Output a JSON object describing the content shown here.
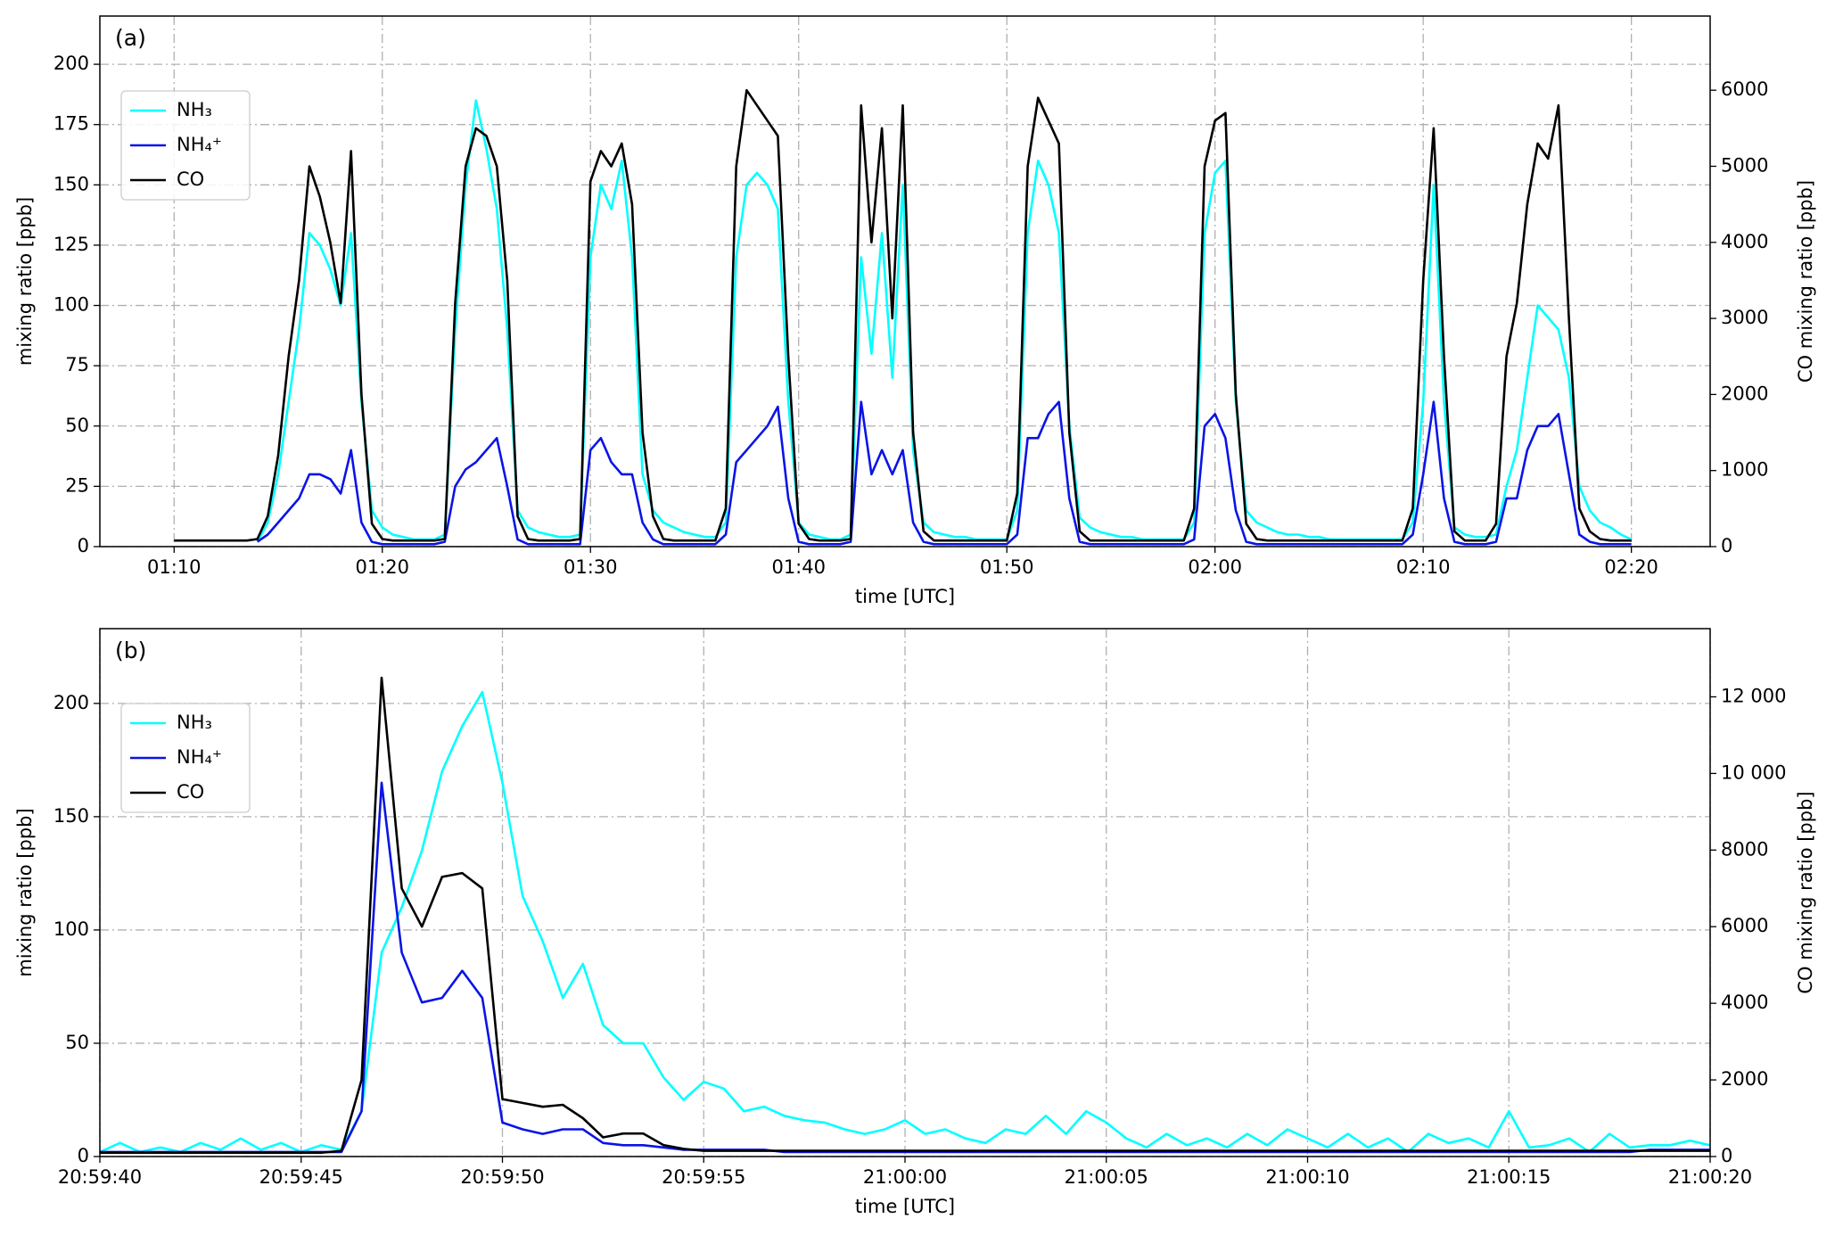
{
  "chart_data": [
    {
      "type": "line",
      "annotation": "(a)",
      "xlabel": "time [UTC]",
      "ylabel": "mixing ratio [ppb]",
      "y2label": "CO mixing ratio [ppb]",
      "grid": true,
      "legend": "upper left",
      "xlim": [
        "01:06:26",
        "02:23:47"
      ],
      "xticks": [
        "01:10",
        "01:20",
        "01:30",
        "01:40",
        "01:50",
        "02:00",
        "02:10",
        "02:20"
      ],
      "ylim": [
        0,
        220
      ],
      "yticks": [
        0,
        25,
        50,
        75,
        100,
        125,
        150,
        175,
        200
      ],
      "y2lim": [
        0,
        6975
      ],
      "y2ticks": [
        0,
        1000,
        2000,
        3000,
        4000,
        5000,
        6000
      ],
      "x": [
        "01:10:00",
        "01:10:30",
        "01:11:00",
        "01:11:30",
        "01:12:00",
        "01:12:30",
        "01:13:00",
        "01:13:30",
        "01:14:00",
        "01:14:30",
        "01:15:00",
        "01:15:30",
        "01:16:00",
        "01:16:30",
        "01:17:00",
        "01:17:30",
        "01:18:00",
        "01:18:30",
        "01:19:00",
        "01:19:30",
        "01:20:00",
        "01:20:30",
        "01:21:00",
        "01:21:30",
        "01:22:00",
        "01:22:30",
        "01:23:00",
        "01:23:30",
        "01:24:00",
        "01:24:30",
        "01:25:00",
        "01:25:30",
        "01:26:00",
        "01:26:30",
        "01:27:00",
        "01:27:30",
        "01:28:00",
        "01:28:30",
        "01:29:00",
        "01:29:30",
        "01:30:00",
        "01:30:30",
        "01:31:00",
        "01:31:30",
        "01:32:00",
        "01:32:30",
        "01:33:00",
        "01:33:30",
        "01:34:00",
        "01:34:30",
        "01:35:00",
        "01:35:30",
        "01:36:00",
        "01:36:30",
        "01:37:00",
        "01:37:30",
        "01:38:00",
        "01:38:30",
        "01:39:00",
        "01:39:30",
        "01:40:00",
        "01:40:30",
        "01:41:00",
        "01:41:30",
        "01:42:00",
        "01:42:30",
        "01:43:00",
        "01:43:30",
        "01:44:00",
        "01:44:30",
        "01:45:00",
        "01:45:30",
        "01:46:00",
        "01:46:30",
        "01:47:00",
        "01:47:30",
        "01:48:00",
        "01:48:30",
        "01:49:00",
        "01:49:30",
        "01:50:00",
        "01:50:30",
        "01:51:00",
        "01:51:30",
        "01:52:00",
        "01:52:30",
        "01:53:00",
        "01:53:30",
        "01:54:00",
        "01:54:30",
        "01:55:00",
        "01:55:30",
        "01:56:00",
        "01:56:30",
        "01:57:00",
        "01:57:30",
        "01:58:00",
        "01:58:30",
        "01:59:00",
        "01:59:30",
        "02:00:00",
        "02:00:30",
        "02:01:00",
        "02:01:30",
        "02:02:00",
        "02:02:30",
        "02:03:00",
        "02:03:30",
        "02:04:00",
        "02:04:30",
        "02:05:00",
        "02:05:30",
        "02:06:00",
        "02:06:30",
        "02:07:00",
        "02:07:30",
        "02:08:00",
        "02:08:30",
        "02:09:00",
        "02:09:30",
        "02:10:00",
        "02:10:30",
        "02:11:00",
        "02:11:30",
        "02:12:00",
        "02:12:30",
        "02:13:00",
        "02:13:30",
        "02:14:00",
        "02:14:30",
        "02:15:00",
        "02:15:30",
        "02:16:00",
        "02:16:30",
        "02:17:00",
        "02:17:30",
        "02:18:00",
        "02:18:30",
        "02:19:00",
        "02:19:30",
        "02:20:00"
      ],
      "series": [
        {
          "name": "NH₃",
          "color": "#00ffff",
          "values": [
            null,
            null,
            null,
            null,
            null,
            null,
            null,
            null,
            2,
            10,
            30,
            60,
            90,
            130,
            125,
            115,
            100,
            130,
            60,
            15,
            8,
            5,
            4,
            3,
            3,
            3,
            5,
            90,
            150,
            185,
            165,
            140,
            90,
            15,
            8,
            6,
            5,
            4,
            4,
            5,
            120,
            150,
            140,
            160,
            120,
            30,
            15,
            10,
            8,
            6,
            5,
            4,
            4,
            10,
            120,
            150,
            155,
            150,
            140,
            60,
            10,
            5,
            4,
            3,
            3,
            5,
            120,
            80,
            130,
            70,
            150,
            40,
            10,
            6,
            5,
            4,
            4,
            3,
            3,
            3,
            3,
            15,
            130,
            160,
            150,
            130,
            50,
            12,
            8,
            6,
            5,
            4,
            4,
            3,
            3,
            3,
            3,
            3,
            10,
            130,
            155,
            160,
            60,
            15,
            10,
            8,
            6,
            5,
            5,
            4,
            4,
            3,
            3,
            3,
            3,
            3,
            3,
            3,
            3,
            10,
            60,
            150,
            60,
            8,
            5,
            4,
            4,
            5,
            25,
            40,
            70,
            100,
            95,
            90,
            70,
            25,
            15,
            10,
            8,
            5,
            3
          ]
        },
        {
          "name": "NH₄⁺",
          "color": "#0a14e6",
          "values": [
            null,
            null,
            null,
            null,
            null,
            null,
            null,
            null,
            2,
            5,
            10,
            15,
            20,
            30,
            30,
            28,
            22,
            40,
            10,
            2,
            1,
            1,
            1,
            1,
            1,
            1,
            2,
            25,
            32,
            35,
            40,
            45,
            25,
            3,
            1,
            1,
            1,
            1,
            1,
            1,
            40,
            45,
            35,
            30,
            30,
            10,
            3,
            1,
            1,
            1,
            1,
            1,
            1,
            5,
            35,
            40,
            45,
            50,
            58,
            20,
            2,
            1,
            1,
            1,
            1,
            2,
            60,
            30,
            40,
            30,
            40,
            10,
            2,
            1,
            1,
            1,
            1,
            1,
            1,
            1,
            1,
            5,
            45,
            45,
            55,
            60,
            20,
            2,
            1,
            1,
            1,
            1,
            1,
            1,
            1,
            1,
            1,
            1,
            3,
            50,
            55,
            45,
            15,
            2,
            1,
            1,
            1,
            1,
            1,
            1,
            1,
            1,
            1,
            1,
            1,
            1,
            1,
            1,
            1,
            5,
            30,
            60,
            20,
            2,
            1,
            1,
            1,
            2,
            20,
            20,
            40,
            50,
            50,
            55,
            30,
            5,
            2,
            1,
            1,
            1,
            1
          ]
        },
        {
          "name": "CO",
          "color": "#000000",
          "axis": "y2",
          "values": [
            80,
            80,
            80,
            80,
            80,
            80,
            80,
            80,
            100,
            400,
            1200,
            2500,
            3500,
            5000,
            4600,
            4000,
            3200,
            5200,
            2000,
            300,
            100,
            80,
            80,
            80,
            80,
            80,
            100,
            3200,
            5000,
            5500,
            5400,
            5000,
            3500,
            400,
            100,
            80,
            80,
            80,
            80,
            100,
            4800,
            5200,
            5000,
            5300,
            4500,
            1500,
            400,
            100,
            80,
            80,
            80,
            80,
            80,
            500,
            5000,
            6000,
            5800,
            5600,
            5400,
            2500,
            300,
            100,
            80,
            80,
            80,
            100,
            5800,
            4000,
            5500,
            3000,
            5800,
            1500,
            200,
            80,
            80,
            80,
            80,
            80,
            80,
            80,
            80,
            700,
            5000,
            5900,
            5600,
            5300,
            1500,
            200,
            80,
            80,
            80,
            80,
            80,
            80,
            80,
            80,
            80,
            80,
            500,
            5000,
            5600,
            5700,
            2000,
            300,
            100,
            80,
            80,
            80,
            80,
            80,
            80,
            80,
            80,
            80,
            80,
            80,
            80,
            80,
            80,
            500,
            3500,
            5500,
            2500,
            200,
            80,
            80,
            80,
            300,
            2500,
            3200,
            4500,
            5300,
            5100,
            5800,
            3000,
            500,
            200,
            100,
            80,
            80,
            80
          ]
        }
      ]
    },
    {
      "type": "line",
      "annotation": "(b)",
      "xlabel": "time [UTC]",
      "ylabel": "mixing ratio [ppb]",
      "y2label": "CO mixing ratio [ppb]",
      "grid": true,
      "legend": "upper left",
      "xlim": [
        "20:59:40",
        "21:00:20"
      ],
      "xticks": [
        "20:59:40",
        "20:59:45",
        "20:59:50",
        "20:59:55",
        "21:00:00",
        "21:00:05",
        "21:00:10",
        "21:00:15",
        "21:00:20"
      ],
      "ylim": [
        0,
        233
      ],
      "yticks": [
        0,
        50,
        100,
        150,
        200
      ],
      "y2lim": [
        0,
        13780
      ],
      "y2ticks": [
        0,
        2000,
        4000,
        6000,
        8000,
        {
          "value": 10000,
          "label": "10 000"
        },
        {
          "value": 12000,
          "label": "12 000"
        }
      ],
      "x": [
        "20:59:40.0",
        "20:59:40.5",
        "20:59:41.0",
        "20:59:41.5",
        "20:59:42.0",
        "20:59:42.5",
        "20:59:43.0",
        "20:59:43.5",
        "20:59:44.0",
        "20:59:44.5",
        "20:59:45.0",
        "20:59:45.5",
        "20:59:46.0",
        "20:59:46.5",
        "20:59:47.0",
        "20:59:47.5",
        "20:59:48.0",
        "20:59:48.5",
        "20:59:49.0",
        "20:59:49.5",
        "20:59:50.0",
        "20:59:50.5",
        "20:59:51.0",
        "20:59:51.5",
        "20:59:52.0",
        "20:59:52.5",
        "20:59:53.0",
        "20:59:53.5",
        "20:59:54.0",
        "20:59:54.5",
        "20:59:55.0",
        "20:59:55.5",
        "20:59:56.0",
        "20:59:56.5",
        "20:59:57.0",
        "20:59:57.5",
        "20:59:58.0",
        "20:59:58.5",
        "20:59:59.0",
        "20:59:59.5",
        "21:00:00.0",
        "21:00:00.5",
        "21:00:01.0",
        "21:00:01.5",
        "21:00:02.0",
        "21:00:02.5",
        "21:00:03.0",
        "21:00:03.5",
        "21:00:04.0",
        "21:00:04.5",
        "21:00:05.0",
        "21:00:05.5",
        "21:00:06.0",
        "21:00:06.5",
        "21:00:07.0",
        "21:00:07.5",
        "21:00:08.0",
        "21:00:08.5",
        "21:00:09.0",
        "21:00:09.5",
        "21:00:10.0",
        "21:00:10.5",
        "21:00:11.0",
        "21:00:11.5",
        "21:00:12.0",
        "21:00:12.5",
        "21:00:13.0",
        "21:00:13.5",
        "21:00:14.0",
        "21:00:14.5",
        "21:00:15.0",
        "21:00:15.5",
        "21:00:16.0",
        "21:00:16.5",
        "21:00:17.0",
        "21:00:17.5",
        "21:00:18.0",
        "21:00:18.5",
        "21:00:19.0",
        "21:00:19.5",
        "21:00:20.0"
      ],
      "series": [
        {
          "name": "NH₃",
          "color": "#00ffff",
          "values": [
            2,
            6,
            2,
            4,
            2,
            6,
            3,
            8,
            3,
            6,
            2,
            5,
            3,
            20,
            90,
            110,
            135,
            170,
            190,
            205,
            165,
            115,
            95,
            70,
            85,
            58,
            50,
            50,
            35,
            25,
            33,
            30,
            20,
            22,
            18,
            16,
            15,
            12,
            10,
            12,
            16,
            10,
            12,
            8,
            6,
            12,
            10,
            18,
            10,
            20,
            15,
            8,
            4,
            10,
            5,
            8,
            4,
            10,
            5,
            12,
            8,
            4,
            10,
            4,
            8,
            2,
            10,
            6,
            8,
            4,
            20,
            4,
            5,
            8,
            2,
            10,
            4,
            5,
            5,
            7,
            5
          ]
        },
        {
          "name": "NH₄⁺",
          "color": "#0a14e6",
          "values": [
            2,
            2,
            2,
            2,
            2,
            2,
            2,
            2,
            2,
            2,
            2,
            2,
            2,
            20,
            165,
            90,
            68,
            70,
            82,
            70,
            15,
            12,
            10,
            12,
            12,
            6,
            5,
            5,
            4,
            3,
            3,
            3,
            3,
            3,
            2,
            2,
            2,
            2,
            2,
            2,
            2,
            2,
            2,
            2,
            2,
            2,
            2,
            2,
            2,
            2,
            2,
            2,
            2,
            2,
            2,
            2,
            2,
            2,
            2,
            2,
            2,
            2,
            2,
            2,
            2,
            2,
            2,
            2,
            2,
            2,
            2,
            2,
            2,
            2,
            2,
            2,
            2,
            3,
            3,
            3,
            3
          ]
        },
        {
          "name": "CO",
          "color": "#000000",
          "axis": "y2",
          "values": [
            100,
            100,
            100,
            100,
            100,
            100,
            100,
            100,
            100,
            100,
            100,
            100,
            150,
            2000,
            12500,
            7000,
            6000,
            7300,
            7400,
            7000,
            1500,
            1400,
            1300,
            1350,
            1000,
            500,
            600,
            600,
            300,
            200,
            150,
            150,
            150,
            150,
            150,
            150,
            150,
            150,
            150,
            150,
            150,
            150,
            150,
            150,
            150,
            150,
            150,
            150,
            150,
            150,
            150,
            150,
            150,
            150,
            150,
            150,
            150,
            150,
            150,
            150,
            150,
            150,
            150,
            150,
            150,
            150,
            150,
            150,
            150,
            150,
            150,
            150,
            150,
            150,
            150,
            150,
            150,
            150,
            150,
            150,
            150
          ]
        }
      ]
    }
  ]
}
